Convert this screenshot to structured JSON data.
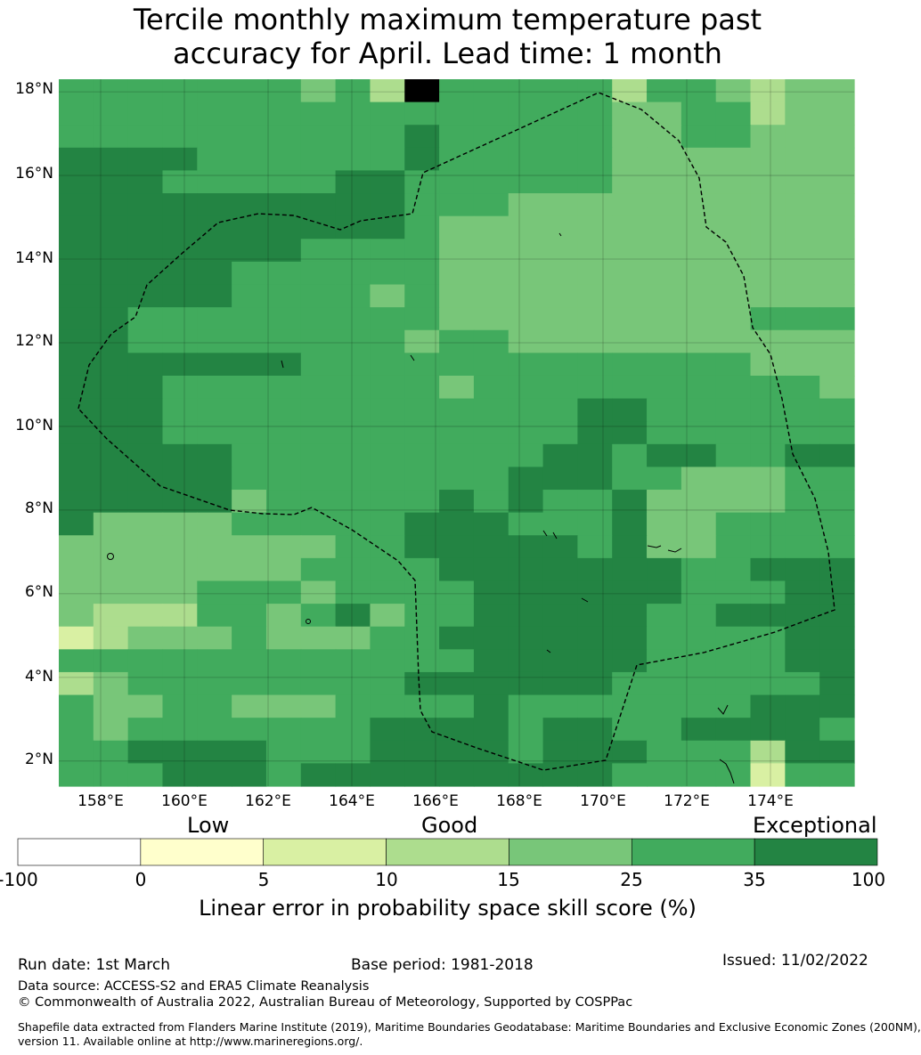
{
  "title": {
    "line1": "Tercile monthly maximum temperature past",
    "line2": "accuracy for April. Lead time: 1 month"
  },
  "map": {
    "lat_labels": [
      "18°N",
      "16°N",
      "14°N",
      "12°N",
      "10°N",
      "8°N",
      "6°N",
      "4°N",
      "2°N"
    ],
    "lon_labels": [
      "158°E",
      "160°E",
      "162°E",
      "164°E",
      "166°E",
      "168°E",
      "170°E",
      "172°E",
      "174°E"
    ],
    "lon_range": [
      157.0,
      176.0
    ],
    "lat_range": [
      1.4,
      18.3
    ],
    "eez_boundary_label": "EEZ boundary"
  },
  "legend": {
    "categories": [
      "Low",
      "Good",
      "Exceptional"
    ],
    "ticks": [
      "-100",
      "0",
      "5",
      "10",
      "15",
      "25",
      "35",
      "100"
    ],
    "colors": [
      "#ffffff",
      "#ffffcc",
      "#d9f0a3",
      "#addd8e",
      "#78c679",
      "#41ab5d",
      "#238443"
    ],
    "axis_title": "Linear error in probability space skill score (%)"
  },
  "footer": {
    "run_date": "Run date: 1st March",
    "base_period": "Base period: 1981-2018",
    "issued": "Issued: 11/02/2022",
    "data_source": "Data source: ACCESS-S2 and ERA5 Climate Reanalysis",
    "copyright": "© Commonwealth of Australia 2022, Australian Bureau of Meteorology, Supported by COSPPac",
    "shapefile_line1": "Shapefile data extracted from Flanders Marine Institute (2019), Maritime Boundaries Geodatabase: Maritime Boundaries and Exclusive Economic Zones (200NM),",
    "shapefile_line2": "version 11. Available online at http://www.marineregions.org/."
  }
}
